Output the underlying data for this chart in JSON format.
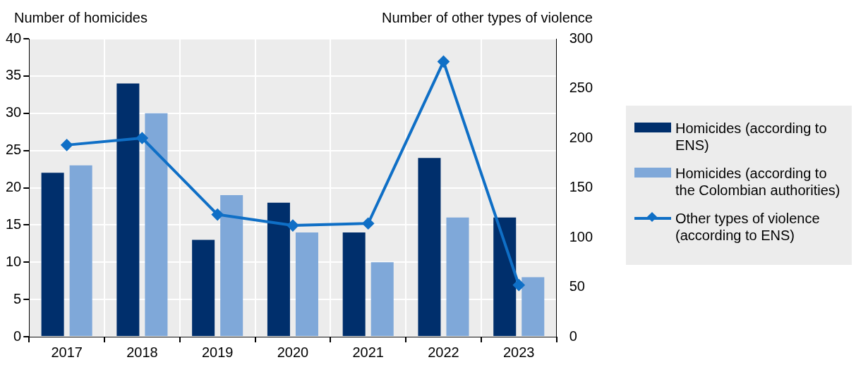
{
  "chart_data": {
    "type": "bar",
    "ylabel": "Number of homicides",
    "y2label": "Number of other types of violence",
    "categories": [
      "2017",
      "2018",
      "2019",
      "2020",
      "2021",
      "2022",
      "2023"
    ],
    "series": [
      {
        "name": "Homicides (according to ENS)",
        "color": "#002f6c",
        "values": [
          22,
          34,
          13,
          18,
          14,
          24,
          16
        ]
      },
      {
        "name": "Homicides (according to the Colombian authorities)",
        "color": "#7fa8d9",
        "values": [
          23,
          30,
          19,
          14,
          10,
          16,
          8
        ]
      },
      {
        "name": "Other types of violence (according to ENS)",
        "type": "line",
        "axis": "y2",
        "color": "#0f6fc6",
        "marker": "diamond",
        "values": [
          193,
          200,
          123,
          112,
          114,
          277,
          52
        ]
      }
    ],
    "ylim": [
      0,
      40
    ],
    "yticks": [
      0,
      5,
      10,
      15,
      20,
      25,
      30,
      35,
      40
    ],
    "y2lim": [
      0,
      300
    ],
    "y2ticks": [
      0,
      50,
      100,
      150,
      200,
      250,
      300
    ],
    "grid": true,
    "legend": "right"
  }
}
